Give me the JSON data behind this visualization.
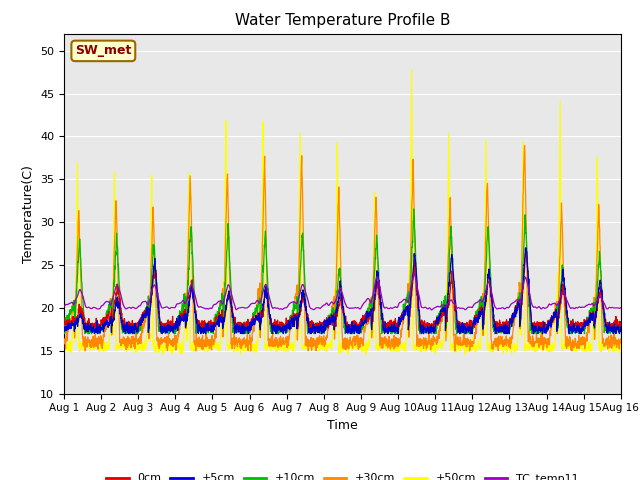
{
  "title": "Water Temperature Profile B",
  "xlabel": "Time",
  "ylabel": "Temperature(C)",
  "ylim": [
    10,
    52
  ],
  "yticks": [
    10,
    15,
    20,
    25,
    30,
    35,
    40,
    45,
    50
  ],
  "background_color": "#e8e8e8",
  "legend_label": "SW_met",
  "legend_box_facecolor": "#ffffcc",
  "legend_box_edgecolor": "#996600",
  "legend_label_color": "#880000",
  "series_colors": {
    "0cm": "#dd0000",
    "+5cm": "#0000cc",
    "+10cm": "#00bb00",
    "+30cm": "#ff8800",
    "+50cm": "#ffff00",
    "TC_temp11": "#9900bb"
  },
  "n_days": 15,
  "time_start": 0,
  "time_end": 15,
  "xtick_labels": [
    "Aug 1",
    "Aug 2",
    "Aug 3",
    "Aug 4",
    "Aug 5",
    "Aug 6",
    "Aug 7",
    "Aug 8",
    "Aug 9",
    "Aug 10",
    "Aug 11",
    "Aug 12",
    "Aug 13",
    "Aug 14",
    "Aug 15",
    "Aug 16"
  ],
  "xtick_positions": [
    0,
    1,
    2,
    3,
    4,
    5,
    6,
    7,
    8,
    9,
    10,
    11,
    12,
    13,
    14,
    15
  ]
}
